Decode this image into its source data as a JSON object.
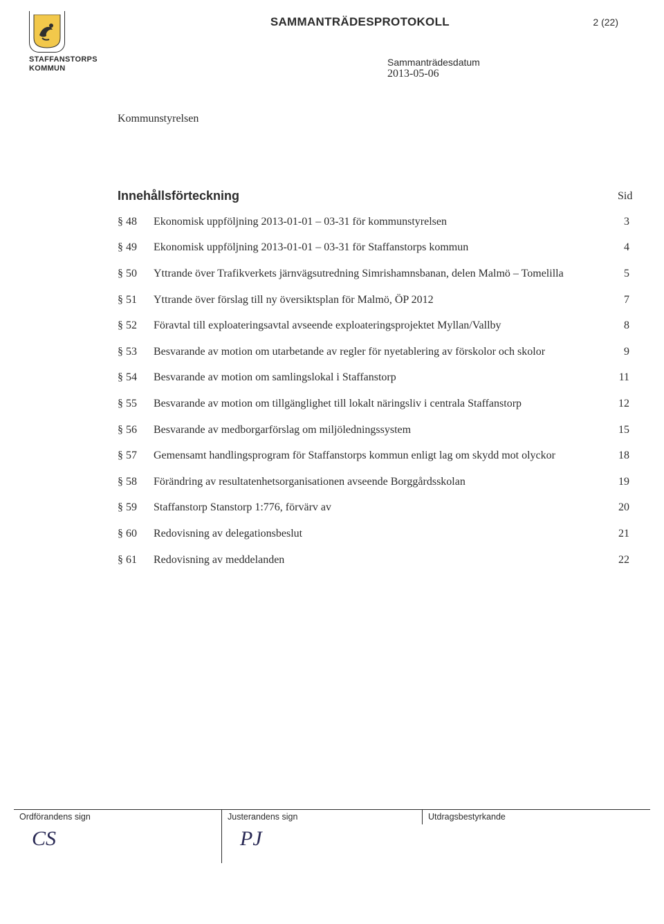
{
  "header": {
    "doc_title": "SAMMANTRÄDESPROTOKOLL",
    "page_indicator": "2 (22)",
    "org_line1": "STAFFANSTORPS",
    "org_line2": "KOMMUN"
  },
  "meta": {
    "body": "Kommunstyrelsen",
    "date_label": "Sammanträdesdatum",
    "date_value": "2013-05-06"
  },
  "toc": {
    "heading": "Innehållsförteckning",
    "sid_label": "Sid",
    "rows": [
      {
        "section": "§ 48",
        "text": "Ekonomisk uppföljning 2013-01-01 – 03-31 för kommunstyrelsen",
        "page": "3"
      },
      {
        "section": "§ 49",
        "text": "Ekonomisk uppföljning 2013-01-01 – 03-31 för Staffanstorps kommun",
        "page": "4"
      },
      {
        "section": "§ 50",
        "text": "Yttrande över Trafikverkets järnvägsutredning Simrishamnsbanan, delen Malmö – Tomelilla",
        "page": "5"
      },
      {
        "section": "§ 51",
        "text": "Yttrande över förslag till ny översiktsplan för Malmö, ÖP 2012",
        "page": "7"
      },
      {
        "section": "§ 52",
        "text": "Föravtal till exploateringsavtal avseende exploateringsprojektet Myllan/Vallby",
        "page": "8"
      },
      {
        "section": "§ 53",
        "text": "Besvarande av motion om utarbetande av regler för nyetablering av förskolor och skolor",
        "page": "9"
      },
      {
        "section": "§ 54",
        "text": "Besvarande av motion om samlingslokal i Staffanstorp",
        "page": "11"
      },
      {
        "section": "§ 55",
        "text": "Besvarande av motion om tillgänglighet till lokalt näringsliv i centrala Staffanstorp",
        "page": "12"
      },
      {
        "section": "§ 56",
        "text": "Besvarande av medborgarförslag om miljöledningssystem",
        "page": "15"
      },
      {
        "section": "§ 57",
        "text": "Gemensamt handlingsprogram för Staffanstorps kommun enligt lag om skydd mot olyckor",
        "page": "18"
      },
      {
        "section": "§ 58",
        "text": "Förändring av resultatenhetsorganisationen avseende Borggårdsskolan",
        "page": "19"
      },
      {
        "section": "§ 59",
        "text": "Staffanstorp Stanstorp 1:776, förvärv av",
        "page": "20"
      },
      {
        "section": "§ 60",
        "text": "Redovisning av delegationsbeslut",
        "page": "21"
      },
      {
        "section": "§ 61",
        "text": "Redovisning av meddelanden",
        "page": "22"
      }
    ]
  },
  "footer": {
    "col1": "Ordförandens sign",
    "col2": "Justerandens sign",
    "col3": "Utdragsbestyrkande",
    "sig1": "CS",
    "sig2": "PJ"
  },
  "colors": {
    "text": "#2b2b2b",
    "crest_yellow": "#f2c84b",
    "crest_dark": "#2f2f2f",
    "sig_ink": "#2a2a55"
  }
}
